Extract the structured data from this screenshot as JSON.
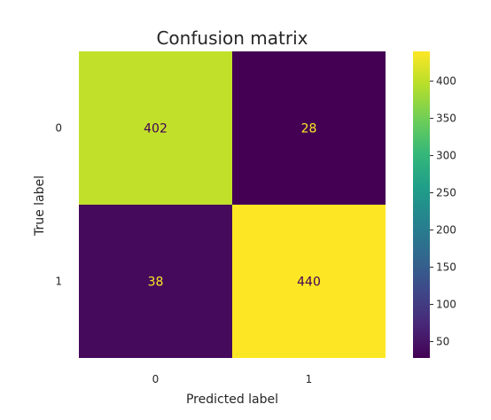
{
  "chart_data": {
    "type": "heatmap",
    "title": "Confusion matrix",
    "xlabel": "Predicted label",
    "ylabel": "True label",
    "x_categories": [
      "0",
      "1"
    ],
    "y_categories": [
      "0",
      "1"
    ],
    "values": [
      [
        402,
        28
      ],
      [
        38,
        440
      ]
    ],
    "colormap": "viridis",
    "colorbar": {
      "range": [
        28,
        440
      ],
      "ticks": [
        50,
        100,
        150,
        200,
        250,
        300,
        350,
        400
      ]
    },
    "grid": false,
    "annotation_colors": {
      "on_dark": "#fde725",
      "on_light": "#440154"
    }
  }
}
